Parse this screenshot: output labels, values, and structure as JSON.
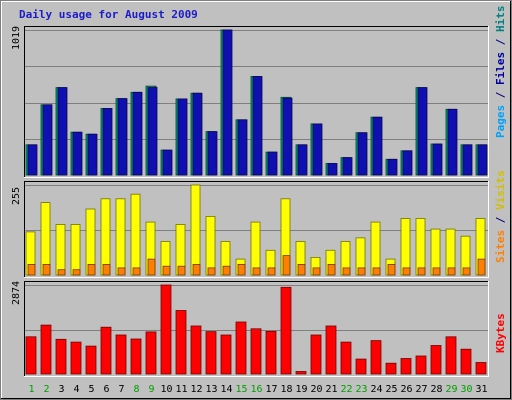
{
  "chart_data": {
    "type": "bar",
    "title": "Daily usage for August 2009",
    "days": [
      "1",
      "2",
      "3",
      "4",
      "5",
      "6",
      "7",
      "8",
      "9",
      "10",
      "11",
      "12",
      "13",
      "14",
      "15",
      "16",
      "17",
      "18",
      "19",
      "20",
      "21",
      "22",
      "23",
      "24",
      "25",
      "26",
      "27",
      "28",
      "29",
      "30",
      "31"
    ],
    "weekend_days": [
      "1",
      "2",
      "8",
      "9",
      "15",
      "16",
      "22",
      "23",
      "29",
      "30"
    ],
    "panels": [
      {
        "id": "pages-files-hits",
        "ymax_label": "1019",
        "ymax": 1019,
        "side_labels": [
          {
            "text": "Pages",
            "color": "#00a0ff"
          },
          {
            "text": " / ",
            "color": "#000080"
          },
          {
            "text": "Files",
            "color": "#0000a0"
          },
          {
            "text": " / ",
            "color": "#000080"
          },
          {
            "text": "Hits",
            "color": "#008080"
          }
        ],
        "series": [
          {
            "name": "Hits",
            "color": "#00a070",
            "values": [
              212,
              493,
              614,
              301,
              287,
              467,
              537,
              581,
              625,
              175,
              535,
              575,
              305,
              1019,
              388,
              692,
              161,
              546,
              212,
              359,
              81,
              122,
              297,
              406,
              110,
              170,
              614,
              218,
              462,
              212,
              212
            ]
          },
          {
            "name": "Files",
            "color": "#1010b0",
            "values": [
              212,
              493,
              614,
              301,
              287,
              467,
              537,
              581,
              615,
              175,
              535,
              575,
              305,
              1019,
              388,
              692,
              161,
              540,
              212,
              359,
              81,
              122,
              297,
              406,
              110,
              170,
              614,
              218,
              462,
              212,
              212
            ]
          },
          {
            "name": "Pages",
            "color": "#00b0f0",
            "values": [
              0,
              0,
              0,
              0,
              0,
              0,
              0,
              0,
              0,
              0,
              0,
              0,
              0,
              0,
              0,
              0,
              0,
              0,
              0,
              0,
              0,
              0,
              0,
              0,
              0,
              0,
              0,
              0,
              0,
              0,
              0
            ]
          }
        ]
      },
      {
        "id": "visits-sites",
        "ymax_label": "255",
        "ymax": 255,
        "side_labels": [
          {
            "text": "Sites",
            "color": "#ff8000"
          },
          {
            "text": " / ",
            "color": "#000080"
          },
          {
            "text": "Visits",
            "color": "#d0c000"
          }
        ],
        "series": [
          {
            "name": "Visits",
            "color": "#ffff00",
            "values": [
              122,
              205,
              143,
              143,
              187,
              216,
              216,
              229,
              150,
              95,
              143,
              255,
              166,
              95,
              45,
              150,
              70,
              216,
              95,
              50,
              70,
              95,
              105,
              150,
              45,
              160,
              160,
              130,
              130,
              110,
              160
            ]
          },
          {
            "name": "Sites",
            "color": "#ff8000",
            "values": [
              30,
              30,
              15,
              15,
              30,
              30,
              20,
              20,
              45,
              25,
              25,
              30,
              20,
              25,
              30,
              20,
              20,
              55,
              30,
              20,
              30,
              20,
              20,
              20,
              30,
              20,
              20,
              20,
              20,
              20,
              45
            ]
          }
        ]
      },
      {
        "id": "kbytes",
        "ymax_label": "2874",
        "ymax": 2874,
        "side_labels": [
          {
            "text": "KBytes",
            "color": "#ff0000"
          }
        ],
        "series": [
          {
            "name": "KBytes",
            "color": "#ff0000",
            "values": [
              1200,
              1580,
              1120,
              1030,
              900,
              1510,
              1260,
              1130,
              1360,
              2874,
              2050,
              1550,
              1370,
              1260,
              1680,
              1460,
              1380,
              2800,
              80,
              1260,
              1550,
              1030,
              480,
              1080,
              350,
              500,
              580,
              920,
              1200,
              800,
              370
            ]
          }
        ]
      }
    ]
  }
}
